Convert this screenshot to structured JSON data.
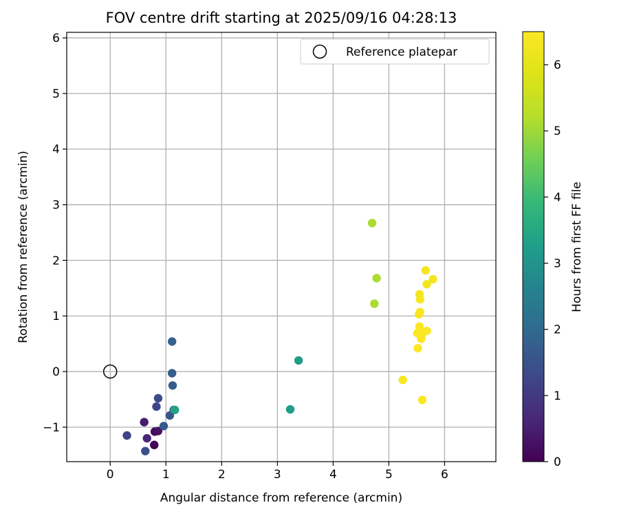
{
  "chart_data": {
    "type": "scatter",
    "title": "FOV centre drift starting at 2025/09/16 04:28:13",
    "xlabel": "Angular distance from reference (arcmin)",
    "ylabel": "Rotation from reference (arcmin)",
    "xlim": [
      -0.78,
      6.92
    ],
    "ylim": [
      -1.62,
      6.1
    ],
    "xticks": [
      0,
      1,
      2,
      3,
      4,
      5,
      6
    ],
    "xtick_labels": [
      "0",
      "1",
      "2",
      "3",
      "4",
      "5",
      "6"
    ],
    "yticks": [
      -1,
      0,
      1,
      2,
      3,
      4,
      5,
      6
    ],
    "ytick_labels": [
      "−1",
      "0",
      "1",
      "2",
      "3",
      "4",
      "5",
      "6"
    ],
    "grid": true,
    "legend": {
      "position": "top-right",
      "entries": [
        "Reference platepar"
      ]
    },
    "reference_point": {
      "label": "Reference platepar",
      "x": 0,
      "y": 0,
      "marker": "open-circle"
    },
    "colorbar": {
      "label": "Hours from first FF file",
      "range": [
        0,
        6.5
      ],
      "ticks": [
        0,
        1,
        2,
        3,
        4,
        5,
        6
      ],
      "tick_labels": [
        "0",
        "1",
        "2",
        "3",
        "4",
        "5",
        "6"
      ],
      "colormap": "viridis"
    },
    "points": [
      {
        "x": 0.79,
        "y": -1.32,
        "hours": 0.05
      },
      {
        "x": 0.8,
        "y": -1.08,
        "hours": 0.15
      },
      {
        "x": 0.86,
        "y": -1.07,
        "hours": 0.3
      },
      {
        "x": 0.61,
        "y": -0.91,
        "hours": 0.45
      },
      {
        "x": 0.66,
        "y": -1.2,
        "hours": 0.65
      },
      {
        "x": 0.3,
        "y": -1.15,
        "hours": 1.2
      },
      {
        "x": 0.63,
        "y": -1.43,
        "hours": 1.45
      },
      {
        "x": 0.96,
        "y": -0.98,
        "hours": 1.65
      },
      {
        "x": 1.07,
        "y": -0.79,
        "hours": 1.6
      },
      {
        "x": 0.83,
        "y": -0.63,
        "hours": 1.25
      },
      {
        "x": 0.86,
        "y": -0.48,
        "hours": 1.35
      },
      {
        "x": 1.14,
        "y": -0.69,
        "hours": 1.75
      },
      {
        "x": 1.12,
        "y": -0.25,
        "hours": 1.7
      },
      {
        "x": 1.11,
        "y": -0.03,
        "hours": 1.75
      },
      {
        "x": 1.11,
        "y": 0.54,
        "hours": 1.85
      },
      {
        "x": 1.16,
        "y": -0.69,
        "hours": 3.4
      },
      {
        "x": 3.23,
        "y": -0.68,
        "hours": 3.25
      },
      {
        "x": 3.38,
        "y": 0.2,
        "hours": 3.2
      },
      {
        "x": 4.7,
        "y": 2.67,
        "hours": 5.1
      },
      {
        "x": 4.78,
        "y": 1.68,
        "hours": 5.1
      },
      {
        "x": 4.74,
        "y": 1.22,
        "hours": 5.1
      },
      {
        "x": 5.66,
        "y": 1.82,
        "hours": 6.3
      },
      {
        "x": 5.79,
        "y": 1.66,
        "hours": 6.3
      },
      {
        "x": 5.68,
        "y": 1.57,
        "hours": 6.25
      },
      {
        "x": 5.55,
        "y": 1.39,
        "hours": 6.35
      },
      {
        "x": 5.56,
        "y": 1.3,
        "hours": 6.35
      },
      {
        "x": 5.56,
        "y": 1.07,
        "hours": 6.4
      },
      {
        "x": 5.54,
        "y": 1.03,
        "hours": 6.4
      },
      {
        "x": 5.55,
        "y": 0.81,
        "hours": 6.45
      },
      {
        "x": 5.68,
        "y": 0.73,
        "hours": 6.45
      },
      {
        "x": 5.55,
        "y": 0.72,
        "hours": 6.45
      },
      {
        "x": 5.51,
        "y": 0.69,
        "hours": 6.45
      },
      {
        "x": 5.59,
        "y": 0.66,
        "hours": 6.45
      },
      {
        "x": 5.58,
        "y": 0.59,
        "hours": 6.45
      },
      {
        "x": 5.52,
        "y": 0.42,
        "hours": 6.45
      },
      {
        "x": 5.25,
        "y": -0.15,
        "hours": 6.4
      },
      {
        "x": 5.6,
        "y": -0.51,
        "hours": 6.45
      }
    ]
  }
}
